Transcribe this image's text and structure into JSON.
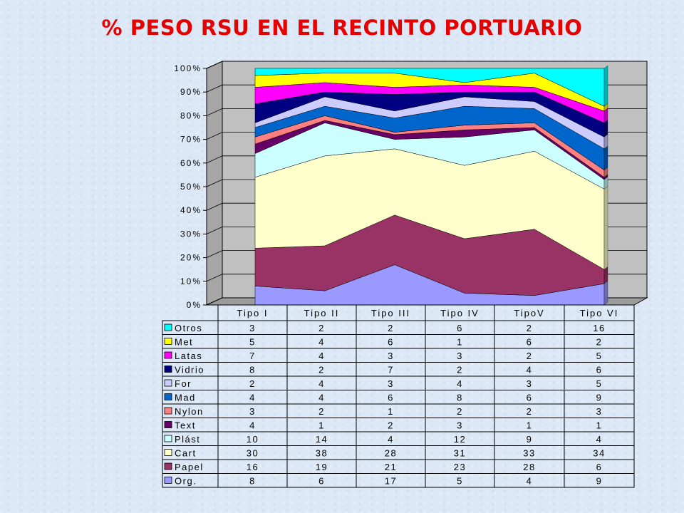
{
  "title": "% PESO RSU EN EL RECINTO PORTUARIO",
  "chart_data": {
    "type": "area",
    "stacked": "percent",
    "three_d": true,
    "legend": "table-below",
    "categories": [
      "Tipo I",
      "Tipo II",
      "Tipo III",
      "Tipo IV",
      "TipoV",
      "Tipo VI"
    ],
    "y_ticks": [
      "0%",
      "10%",
      "20%",
      "30%",
      "40%",
      "50%",
      "60%",
      "70%",
      "80%",
      "90%",
      "100%"
    ],
    "ylim": [
      0,
      100
    ],
    "series": [
      {
        "name": "Org.",
        "color": "#9999ff",
        "values": [
          8,
          6,
          17,
          5,
          4,
          9
        ]
      },
      {
        "name": "Papel",
        "color": "#993366",
        "values": [
          16,
          19,
          21,
          23,
          28,
          6
        ]
      },
      {
        "name": "Cart",
        "color": "#ffffcc",
        "values": [
          30,
          38,
          28,
          31,
          33,
          34
        ]
      },
      {
        "name": "Plást",
        "color": "#ccffff",
        "values": [
          10,
          14,
          4,
          12,
          9,
          4
        ]
      },
      {
        "name": "Text",
        "color": "#660066",
        "values": [
          4,
          1,
          2,
          3,
          1,
          1
        ]
      },
      {
        "name": "Nylon",
        "color": "#ff8080",
        "values": [
          3,
          2,
          1,
          2,
          2,
          3
        ]
      },
      {
        "name": "Mad",
        "color": "#0066cc",
        "values": [
          4,
          4,
          6,
          8,
          6,
          9
        ]
      },
      {
        "name": "For",
        "color": "#ccccff",
        "values": [
          2,
          4,
          3,
          4,
          3,
          5
        ]
      },
      {
        "name": "Vidrio",
        "color": "#000080",
        "values": [
          8,
          2,
          7,
          2,
          4,
          6
        ]
      },
      {
        "name": "Latas",
        "color": "#ff00ff",
        "values": [
          7,
          4,
          3,
          3,
          2,
          5
        ]
      },
      {
        "name": "Met",
        "color": "#ffff00",
        "values": [
          5,
          4,
          6,
          1,
          6,
          2
        ]
      },
      {
        "name": "Otros",
        "color": "#00ffff",
        "values": [
          3,
          2,
          2,
          6,
          2,
          16
        ]
      }
    ]
  }
}
